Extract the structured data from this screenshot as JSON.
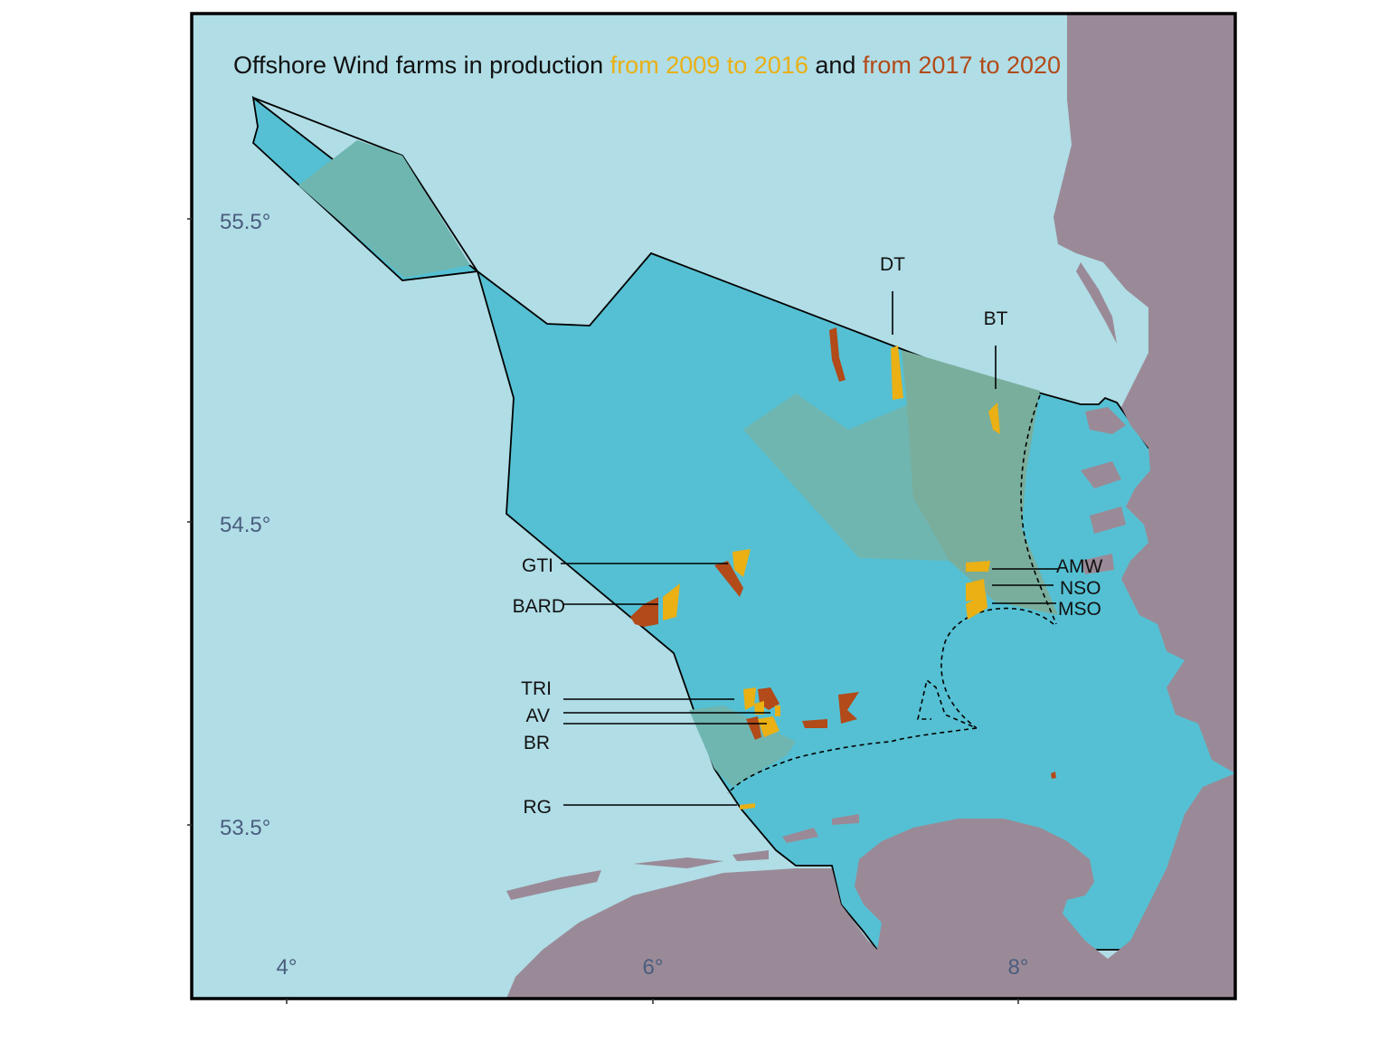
{
  "title": {
    "part1": "Offshore Wind farms in production ",
    "part2": "from 2009 to 2016",
    "part3": " and ",
    "part4": "from 2017 to 2020"
  },
  "axes": {
    "x_ticks": [
      "4°",
      "6°",
      "8°"
    ],
    "y_ticks": [
      "55.5°",
      "54.5°",
      "53.5°"
    ]
  },
  "farm_labels": {
    "DT": "DT",
    "BT": "BT",
    "GTI": "GTI",
    "BARD": "BARD",
    "AMW": "AMW",
    "NSO": "NSO",
    "MSO": "MSO",
    "TRI": "TRI",
    "AV": "AV",
    "BR": "BR",
    "RG": "RG"
  },
  "colors": {
    "sea": "#b0dde6",
    "eez": "#55c0d3",
    "zone": "#6fb5b0",
    "zone_east": "#7aae9c",
    "land": "#9a8a97",
    "farm_2009_2016": "#eab014",
    "farm_2017_2020": "#b24a19",
    "title_black": "#111111"
  }
}
